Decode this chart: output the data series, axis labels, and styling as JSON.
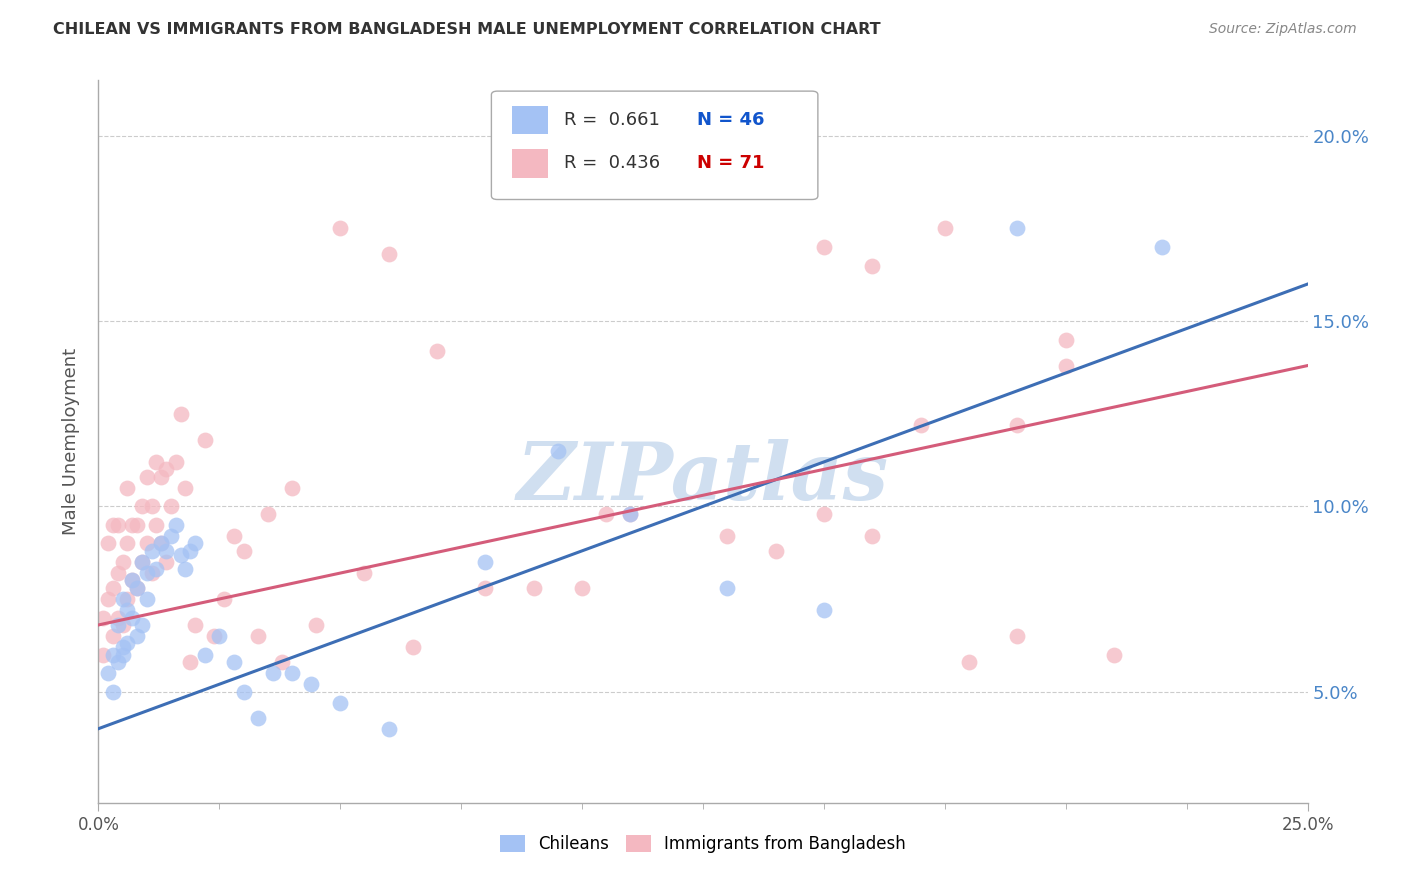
{
  "title": "CHILEAN VS IMMIGRANTS FROM BANGLADESH MALE UNEMPLOYMENT CORRELATION CHART",
  "source": "Source: ZipAtlas.com",
  "ylabel": "Male Unemployment",
  "xlim": [
    0.0,
    0.25
  ],
  "ylim": [
    0.02,
    0.215
  ],
  "xticks_major": [
    0.0,
    0.25
  ],
  "xticklabels_major": [
    "0.0%",
    "25.0%"
  ],
  "xticks_minor": [
    0.025,
    0.05,
    0.075,
    0.1,
    0.125,
    0.15,
    0.175,
    0.2,
    0.225
  ],
  "yticks": [
    0.05,
    0.1,
    0.15,
    0.2
  ],
  "yticklabels": [
    "5.0%",
    "10.0%",
    "15.0%",
    "20.0%"
  ],
  "legend_text_row1": "R =  0.661   N = 46",
  "legend_text_row2": "R =  0.436   N = 71",
  "legend_r1": "R =  0.661",
  "legend_n1": "N = 46",
  "legend_r2": "R =  0.436",
  "legend_n2": "N = 71",
  "legend_label_blue": "Chileans",
  "legend_label_pink": "Immigrants from Bangladesh",
  "blue_color": "#a4c2f4",
  "pink_color": "#f4b8c1",
  "blue_line_color": "#3d6eb5",
  "pink_line_color": "#d45c7a",
  "text_color": "#333333",
  "r_color": "#333333",
  "n_color_blue": "#1155cc",
  "n_color_pink": "#cc0000",
  "watermark": "ZIPatlas",
  "watermark_color": "#d0dff0",
  "grid_color": "#cccccc",
  "right_yaxis_color": "#4a86c8",
  "blue_intercept": 0.04,
  "blue_slope": 0.48,
  "pink_intercept": 0.068,
  "pink_slope": 0.28,
  "blue_scatter_x": [
    0.002,
    0.003,
    0.003,
    0.004,
    0.004,
    0.005,
    0.005,
    0.005,
    0.006,
    0.006,
    0.007,
    0.007,
    0.008,
    0.008,
    0.009,
    0.009,
    0.01,
    0.01,
    0.011,
    0.012,
    0.013,
    0.014,
    0.015,
    0.016,
    0.017,
    0.018,
    0.019,
    0.02,
    0.022,
    0.025,
    0.028,
    0.03,
    0.033,
    0.036,
    0.04,
    0.044,
    0.05,
    0.06,
    0.08,
    0.095,
    0.11,
    0.13,
    0.15,
    0.19,
    0.22,
    0.13
  ],
  "blue_scatter_y": [
    0.055,
    0.05,
    0.06,
    0.058,
    0.068,
    0.062,
    0.06,
    0.075,
    0.063,
    0.072,
    0.07,
    0.08,
    0.065,
    0.078,
    0.068,
    0.085,
    0.075,
    0.082,
    0.088,
    0.083,
    0.09,
    0.088,
    0.092,
    0.095,
    0.087,
    0.083,
    0.088,
    0.09,
    0.06,
    0.065,
    0.058,
    0.05,
    0.043,
    0.055,
    0.055,
    0.052,
    0.047,
    0.04,
    0.085,
    0.115,
    0.098,
    0.078,
    0.072,
    0.175,
    0.17,
    0.195
  ],
  "pink_scatter_x": [
    0.001,
    0.001,
    0.002,
    0.002,
    0.003,
    0.003,
    0.003,
    0.004,
    0.004,
    0.004,
    0.005,
    0.005,
    0.006,
    0.006,
    0.006,
    0.007,
    0.007,
    0.008,
    0.008,
    0.009,
    0.009,
    0.01,
    0.01,
    0.011,
    0.011,
    0.012,
    0.012,
    0.013,
    0.013,
    0.014,
    0.014,
    0.015,
    0.016,
    0.017,
    0.018,
    0.019,
    0.02,
    0.022,
    0.024,
    0.026,
    0.028,
    0.03,
    0.033,
    0.035,
    0.038,
    0.04,
    0.045,
    0.05,
    0.055,
    0.06,
    0.065,
    0.07,
    0.08,
    0.09,
    0.1,
    0.105,
    0.11,
    0.13,
    0.14,
    0.15,
    0.16,
    0.17,
    0.18,
    0.19,
    0.2,
    0.21,
    0.15,
    0.16,
    0.175,
    0.19,
    0.2
  ],
  "pink_scatter_y": [
    0.06,
    0.07,
    0.075,
    0.09,
    0.065,
    0.078,
    0.095,
    0.07,
    0.082,
    0.095,
    0.068,
    0.085,
    0.075,
    0.09,
    0.105,
    0.08,
    0.095,
    0.078,
    0.095,
    0.085,
    0.1,
    0.09,
    0.108,
    0.082,
    0.1,
    0.095,
    0.112,
    0.09,
    0.108,
    0.085,
    0.11,
    0.1,
    0.112,
    0.125,
    0.105,
    0.058,
    0.068,
    0.118,
    0.065,
    0.075,
    0.092,
    0.088,
    0.065,
    0.098,
    0.058,
    0.105,
    0.068,
    0.175,
    0.082,
    0.168,
    0.062,
    0.142,
    0.078,
    0.078,
    0.078,
    0.098,
    0.098,
    0.092,
    0.088,
    0.098,
    0.092,
    0.122,
    0.058,
    0.122,
    0.138,
    0.06,
    0.17,
    0.165,
    0.175,
    0.065,
    0.145
  ]
}
